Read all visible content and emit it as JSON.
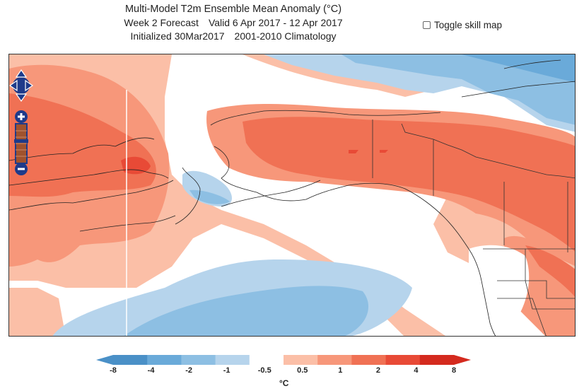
{
  "header": {
    "title": "Multi-Model T2m Ensemble Mean Anomaly (°C)",
    "forecast_label": "Week 2 Forecast",
    "valid_range": "Valid 6 Apr 2017 - 12 Apr 2017",
    "initialized": "Initialized 30Mar2017",
    "climatology": "2001-2010 Climatology"
  },
  "toggle": {
    "label": "Toggle skill map",
    "checked": false
  },
  "map_controls": {
    "pan": "pan-arrows-icon",
    "zoom_in": "plus-icon",
    "zoom_out": "minus-icon",
    "zoom_bar": "zoom-slider"
  },
  "legend": {
    "unit": "°C",
    "ticks": [
      "-8",
      "-4",
      "-2",
      "-1",
      "-0.5",
      "0.5",
      "1",
      "2",
      "4",
      "8"
    ],
    "colors": [
      "#4a90c7",
      "#6aaad9",
      "#8dbfe3",
      "#b6d4ec",
      "#ffffff",
      "#fbbfa7",
      "#f7977a",
      "#f07154",
      "#e84a36",
      "#d42a1e"
    ]
  },
  "anomaly_colors": {
    "cold_strong": "#6aaad9",
    "cold": "#8dbfe3",
    "cold_light": "#b6d4ec",
    "warm_light": "#fbbfa7",
    "warm": "#f7977a",
    "warm_strong": "#f07154",
    "hot": "#e84a36"
  }
}
